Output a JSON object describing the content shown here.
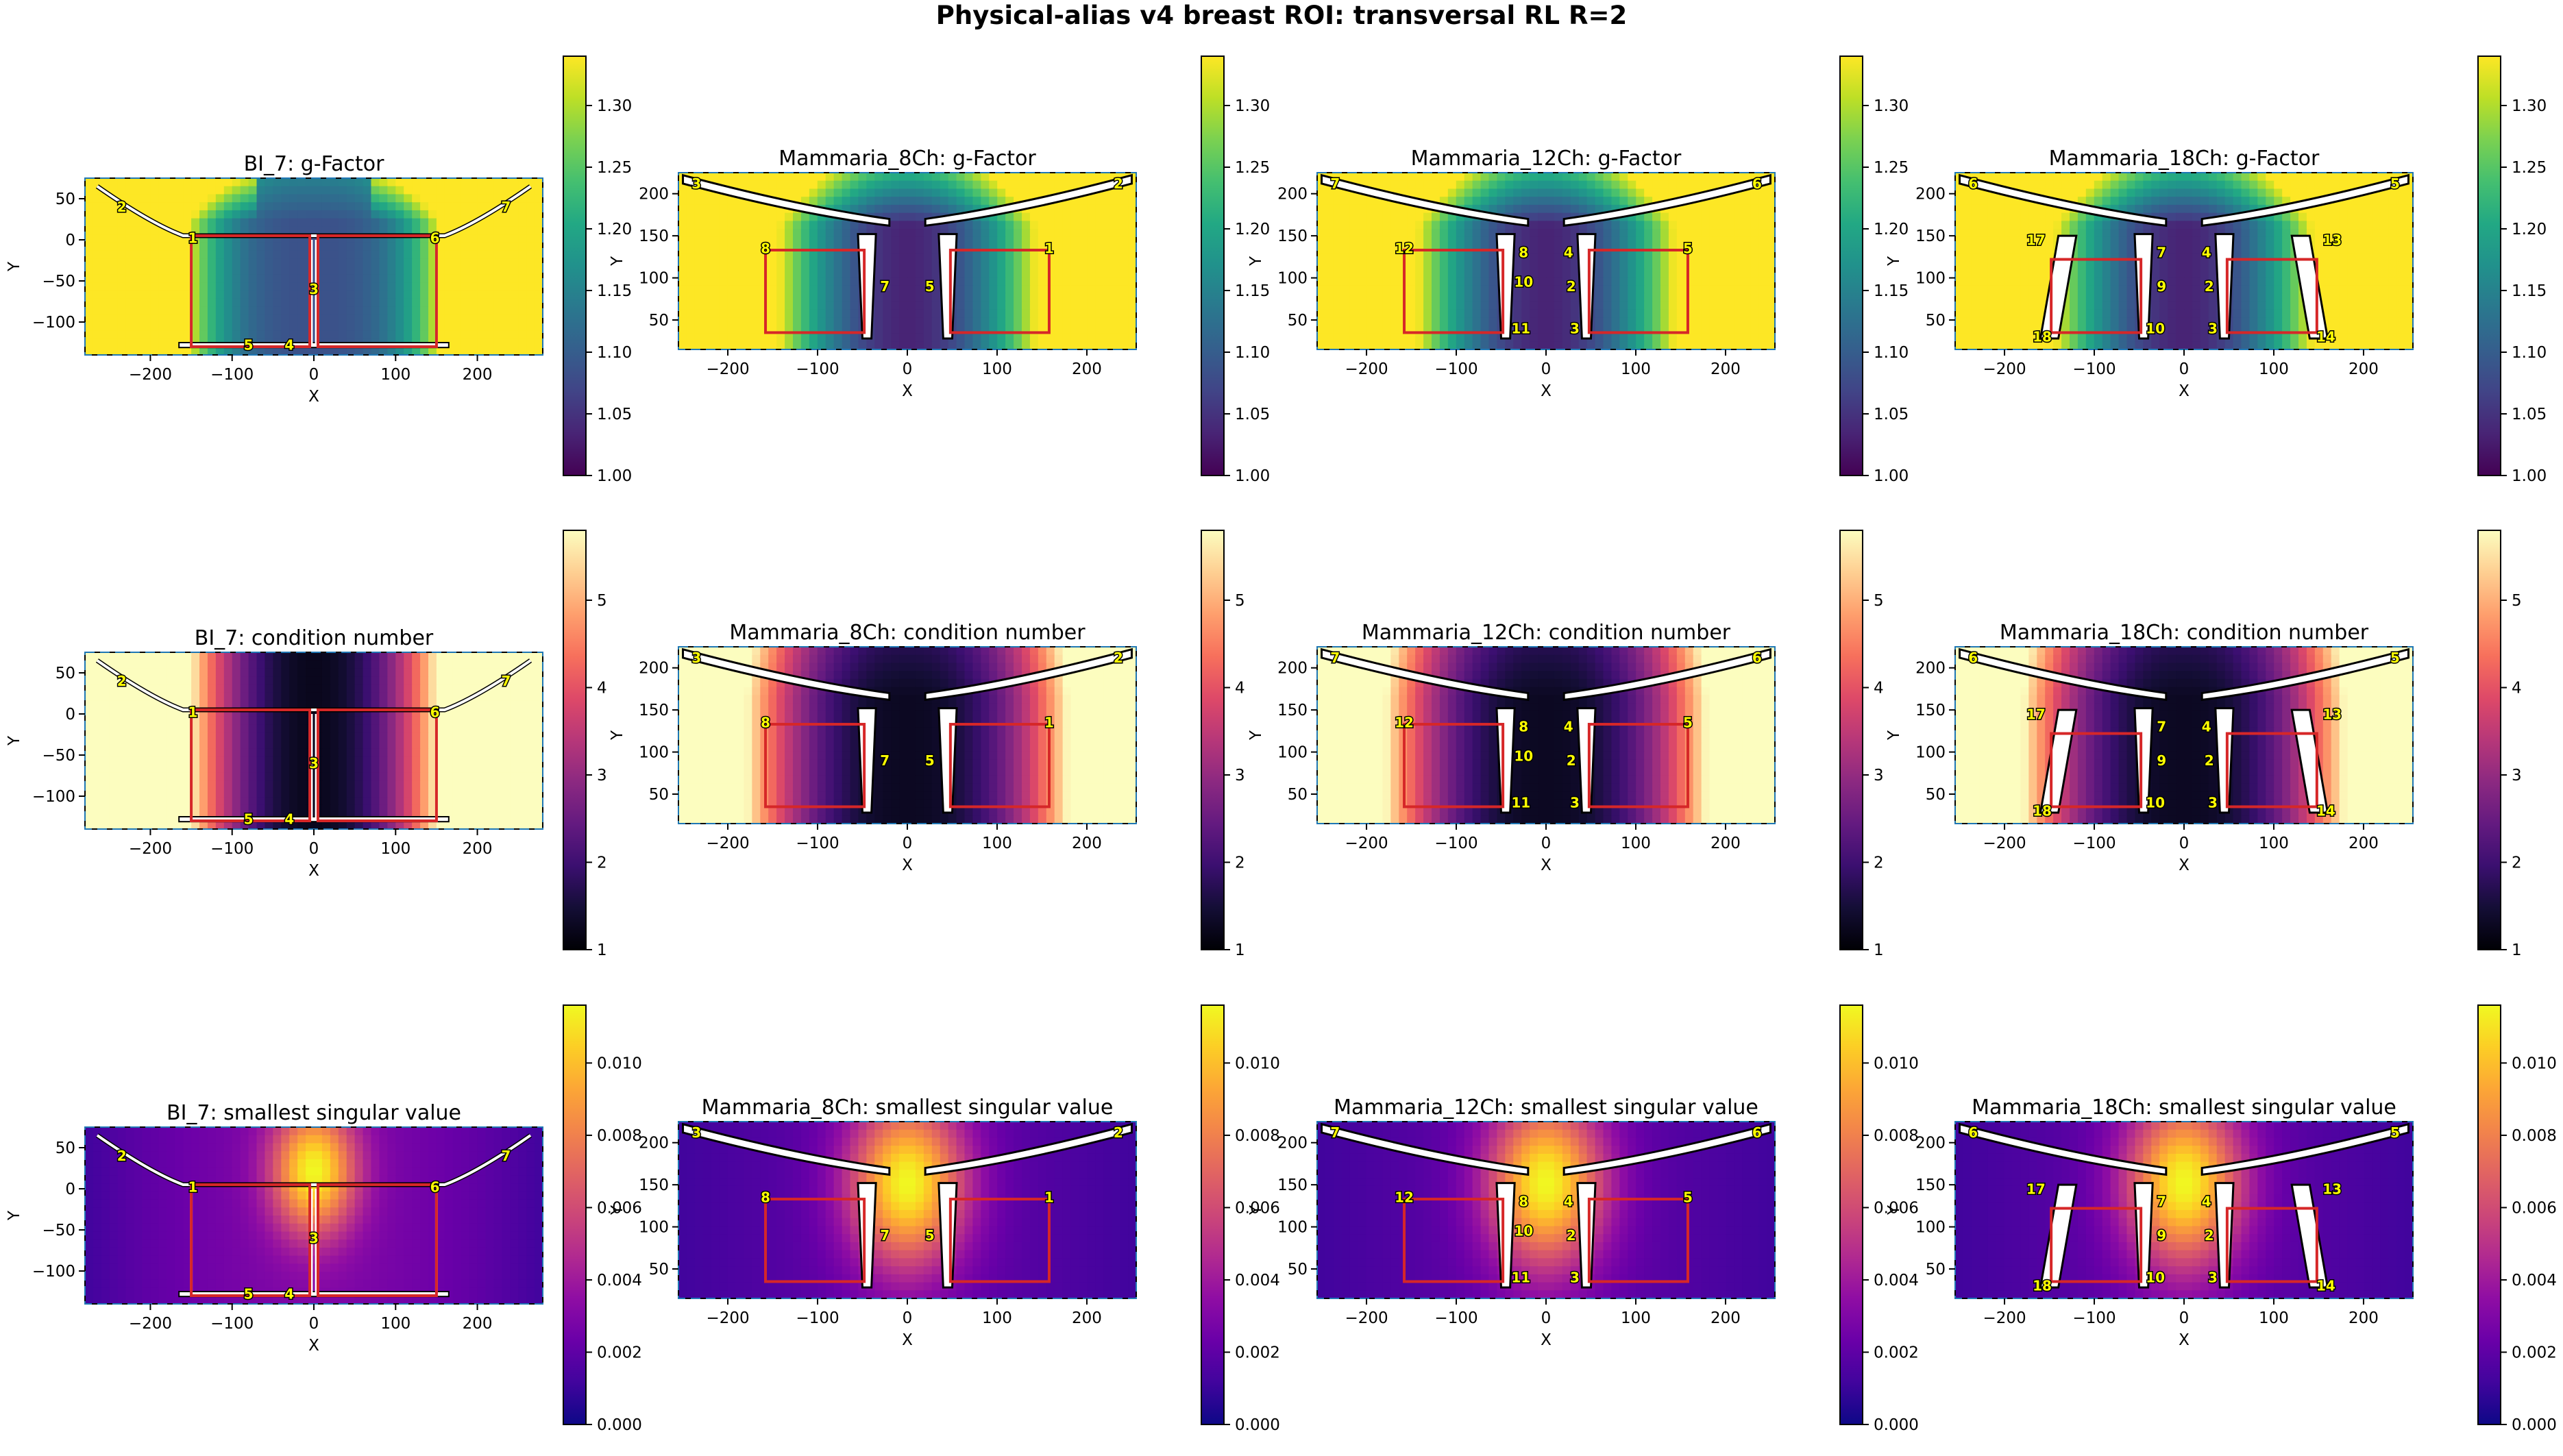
{
  "figure": {
    "title": "Physical-alias v4 breast ROI: transversal RL R=2"
  },
  "chart_data": [
    {
      "type": "heatmap",
      "coil": "BI_7",
      "metric": "gfactor",
      "title": "BI_7: g-Factor",
      "xlabel": "X",
      "ylabel": "Y",
      "xticks": [
        -200,
        -100,
        0,
        100,
        200
      ],
      "yticks": [
        50,
        0,
        -50,
        -100
      ],
      "xlim": [
        -280,
        280
      ],
      "ylim": [
        -140,
        75
      ],
      "colormap": "viridis",
      "colorbar": {
        "ticks": [
          "1.00",
          "1.05",
          "1.10",
          "1.15",
          "1.20",
          "1.25",
          "1.30"
        ],
        "range": [
          1.0,
          1.34
        ]
      },
      "coil_labels": [
        "1",
        "2",
        "3",
        "4",
        "5",
        "6",
        "7"
      ]
    },
    {
      "type": "heatmap",
      "coil": "Mammaria_8Ch",
      "metric": "gfactor",
      "title": "Mammaria_8Ch: g-Factor",
      "xlabel": "X",
      "ylabel": "Y",
      "xticks": [
        -200,
        -100,
        0,
        100,
        200
      ],
      "yticks": [
        200,
        150,
        100,
        50
      ],
      "xlim": [
        -255,
        255
      ],
      "ylim": [
        15,
        225
      ],
      "colormap": "viridis",
      "colorbar": {
        "ticks": [
          "1.00",
          "1.05",
          "1.10",
          "1.15",
          "1.20",
          "1.25",
          "1.30"
        ],
        "range": [
          1.0,
          1.34
        ]
      },
      "coil_labels": [
        "1",
        "2",
        "3",
        "5",
        "7",
        "8"
      ]
    },
    {
      "type": "heatmap",
      "coil": "Mammaria_12Ch",
      "metric": "gfactor",
      "title": "Mammaria_12Ch: g-Factor",
      "xlabel": "X",
      "ylabel": "Y",
      "xticks": [
        -200,
        -100,
        0,
        100,
        200
      ],
      "yticks": [
        200,
        150,
        100,
        50
      ],
      "xlim": [
        -255,
        255
      ],
      "ylim": [
        15,
        225
      ],
      "colormap": "viridis",
      "colorbar": {
        "ticks": [
          "1.00",
          "1.05",
          "1.10",
          "1.15",
          "1.20",
          "1.25",
          "1.30"
        ],
        "range": [
          1.0,
          1.34
        ]
      },
      "coil_labels": [
        "2",
        "3",
        "4",
        "5",
        "6",
        "7",
        "8",
        "10",
        "11",
        "12"
      ]
    },
    {
      "type": "heatmap",
      "coil": "Mammaria_18Ch",
      "metric": "gfactor",
      "title": "Mammaria_18Ch: g-Factor",
      "xlabel": "X",
      "ylabel": "Y",
      "xticks": [
        -200,
        -100,
        0,
        100,
        200
      ],
      "yticks": [
        200,
        150,
        100,
        50
      ],
      "xlim": [
        -255,
        255
      ],
      "ylim": [
        15,
        225
      ],
      "colormap": "viridis",
      "colorbar": {
        "ticks": [
          "1.00",
          "1.05",
          "1.10",
          "1.15",
          "1.20",
          "1.25",
          "1.30"
        ],
        "range": [
          1.0,
          1.34
        ]
      },
      "coil_labels": [
        "2",
        "3",
        "4",
        "5",
        "6",
        "7",
        "9",
        "10",
        "13",
        "14",
        "17",
        "18"
      ]
    },
    {
      "type": "heatmap",
      "coil": "BI_7",
      "metric": "cond",
      "title": "BI_7: condition number",
      "xlabel": "X",
      "ylabel": "Y",
      "xticks": [
        -200,
        -100,
        0,
        100,
        200
      ],
      "yticks": [
        50,
        0,
        -50,
        -100
      ],
      "xlim": [
        -280,
        280
      ],
      "ylim": [
        -140,
        75
      ],
      "colormap": "magma",
      "colorbar": {
        "ticks": [
          "1",
          "2",
          "3",
          "4",
          "5"
        ],
        "range": [
          1,
          5.8
        ]
      },
      "coil_labels": [
        "1",
        "2",
        "3",
        "4",
        "5",
        "6",
        "7"
      ]
    },
    {
      "type": "heatmap",
      "coil": "Mammaria_8Ch",
      "metric": "cond",
      "title": "Mammaria_8Ch: condition number",
      "xlabel": "X",
      "ylabel": "Y",
      "xticks": [
        -200,
        -100,
        0,
        100,
        200
      ],
      "yticks": [
        200,
        150,
        100,
        50
      ],
      "xlim": [
        -255,
        255
      ],
      "ylim": [
        15,
        225
      ],
      "colormap": "magma",
      "colorbar": {
        "ticks": [
          "1",
          "2",
          "3",
          "4",
          "5"
        ],
        "range": [
          1,
          5.8
        ]
      },
      "coil_labels": [
        "1",
        "2",
        "3",
        "5",
        "7",
        "8"
      ]
    },
    {
      "type": "heatmap",
      "coil": "Mammaria_12Ch",
      "metric": "cond",
      "title": "Mammaria_12Ch: condition number",
      "xlabel": "X",
      "ylabel": "Y",
      "xticks": [
        -200,
        -100,
        0,
        100,
        200
      ],
      "yticks": [
        200,
        150,
        100,
        50
      ],
      "xlim": [
        -255,
        255
      ],
      "ylim": [
        15,
        225
      ],
      "colormap": "magma",
      "colorbar": {
        "ticks": [
          "1",
          "2",
          "3",
          "4",
          "5"
        ],
        "range": [
          1,
          5.8
        ]
      },
      "coil_labels": [
        "2",
        "3",
        "4",
        "5",
        "6",
        "7",
        "8",
        "10",
        "11",
        "12"
      ]
    },
    {
      "type": "heatmap",
      "coil": "Mammaria_18Ch",
      "metric": "cond",
      "title": "Mammaria_18Ch: condition number",
      "xlabel": "X",
      "ylabel": "Y",
      "xticks": [
        -200,
        -100,
        0,
        100,
        200
      ],
      "yticks": [
        200,
        150,
        100,
        50
      ],
      "xlim": [
        -255,
        255
      ],
      "ylim": [
        15,
        225
      ],
      "colormap": "magma",
      "colorbar": {
        "ticks": [
          "1",
          "2",
          "3",
          "4",
          "5"
        ],
        "range": [
          1,
          5.8
        ]
      },
      "coil_labels": [
        "2",
        "3",
        "4",
        "5",
        "6",
        "7",
        "9",
        "10",
        "13",
        "14",
        "17",
        "18"
      ]
    },
    {
      "type": "heatmap",
      "coil": "BI_7",
      "metric": "ssv",
      "title": "BI_7: smallest singular value",
      "xlabel": "X",
      "ylabel": "Y",
      "xticks": [
        -200,
        -100,
        0,
        100,
        200
      ],
      "yticks": [
        50,
        0,
        -50,
        -100
      ],
      "xlim": [
        -280,
        280
      ],
      "ylim": [
        -140,
        75
      ],
      "colormap": "plasma",
      "colorbar": {
        "ticks": [
          "0.000",
          "0.002",
          "0.004",
          "0.006",
          "0.008",
          "0.010"
        ],
        "range": [
          0,
          0.0116
        ]
      },
      "coil_labels": [
        "1",
        "2",
        "3",
        "4",
        "5",
        "6",
        "7"
      ]
    },
    {
      "type": "heatmap",
      "coil": "Mammaria_8Ch",
      "metric": "ssv",
      "title": "Mammaria_8Ch: smallest singular value",
      "xlabel": "X",
      "ylabel": "Y",
      "xticks": [
        -200,
        -100,
        0,
        100,
        200
      ],
      "yticks": [
        200,
        150,
        100,
        50
      ],
      "xlim": [
        -255,
        255
      ],
      "ylim": [
        15,
        225
      ],
      "colormap": "plasma",
      "colorbar": {
        "ticks": [
          "0.000",
          "0.002",
          "0.004",
          "0.006",
          "0.008",
          "0.010"
        ],
        "range": [
          0,
          0.0116
        ]
      },
      "coil_labels": [
        "1",
        "2",
        "3",
        "5",
        "7",
        "8"
      ]
    },
    {
      "type": "heatmap",
      "coil": "Mammaria_12Ch",
      "metric": "ssv",
      "title": "Mammaria_12Ch: smallest singular value",
      "xlabel": "X",
      "ylabel": "Y",
      "xticks": [
        -200,
        -100,
        0,
        100,
        200
      ],
      "yticks": [
        200,
        150,
        100,
        50
      ],
      "xlim": [
        -255,
        255
      ],
      "ylim": [
        15,
        225
      ],
      "colormap": "plasma",
      "colorbar": {
        "ticks": [
          "0.000",
          "0.002",
          "0.004",
          "0.006",
          "0.008",
          "0.010"
        ],
        "range": [
          0,
          0.0116
        ]
      },
      "coil_labels": [
        "2",
        "3",
        "4",
        "5",
        "6",
        "7",
        "8",
        "10",
        "11",
        "12"
      ]
    },
    {
      "type": "heatmap",
      "coil": "Mammaria_18Ch",
      "metric": "ssv",
      "title": "Mammaria_18Ch: smallest singular value",
      "xlabel": "X",
      "ylabel": "Y",
      "xticks": [
        -200,
        -100,
        0,
        100,
        200
      ],
      "yticks": [
        200,
        150,
        100,
        50
      ],
      "xlim": [
        -255,
        255
      ],
      "ylim": [
        15,
        225
      ],
      "colormap": "plasma",
      "colorbar": {
        "ticks": [
          "0.000",
          "0.002",
          "0.004",
          "0.006",
          "0.008",
          "0.010"
        ],
        "range": [
          0,
          0.0116
        ]
      },
      "coil_labels": [
        "2",
        "3",
        "4",
        "5",
        "6",
        "7",
        "9",
        "10",
        "13",
        "14",
        "17",
        "18"
      ]
    }
  ],
  "colors": {
    "roi_box": "#d62728",
    "coil_label_fill": "#ffff00",
    "axes_border": "#1f77b4"
  }
}
